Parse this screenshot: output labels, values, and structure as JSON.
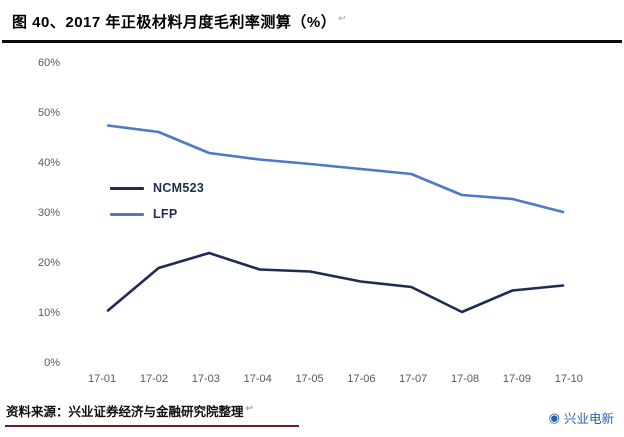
{
  "header": {
    "title": "图 40、2017 年正极材料月度毛利率测算（%）",
    "anchor": "↩"
  },
  "chart_data": {
    "type": "line",
    "title": "2017 年正极材料月度毛利率测算（%）",
    "categories": [
      "17-01",
      "17-02",
      "17-03",
      "17-04",
      "17-05",
      "17-06",
      "17-07",
      "17-08",
      "17-09",
      "17-10"
    ],
    "series": [
      {
        "name": "NCM523",
        "color": "#1f2b54",
        "values": [
          10.5,
          19,
          22,
          18.7,
          18.3,
          16.3,
          15.2,
          10.2,
          14.5,
          15.5
        ]
      },
      {
        "name": "LFP",
        "color": "#4e79c4",
        "values": [
          47.5,
          46.2,
          42,
          40.7,
          39.8,
          38.8,
          37.8,
          33.6,
          32.8,
          30.2
        ]
      }
    ],
    "ylim": [
      0,
      60
    ],
    "yticks": [
      "0%",
      "10%",
      "20%",
      "30%",
      "40%",
      "50%",
      "60%"
    ],
    "xlabel": "",
    "ylabel": "",
    "grid": false,
    "legend_position": "inside-left"
  },
  "footer": {
    "source": "资料来源：兴业证券经济与金融研究院整理",
    "anchor": "↩",
    "brand_icon": "◉",
    "brand": "兴业电新"
  }
}
